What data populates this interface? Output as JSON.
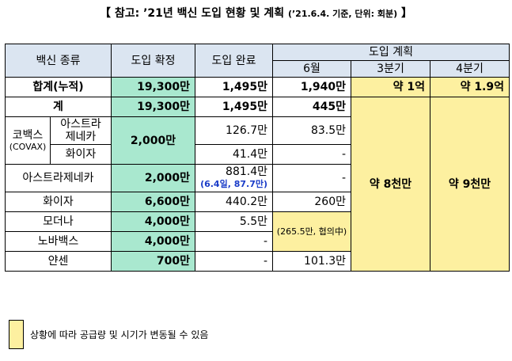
{
  "title": {
    "main": "【 참고: ’21년 백신 도입 현황 및 계획 ",
    "sub": "(’21.6.4. 기준, 단위: 회분)",
    "end": " 】"
  },
  "headers": {
    "type": "백신 종류",
    "confirmed": "도입 확정",
    "completed": "도입 완료",
    "plan": "도입 계획",
    "june": "6월",
    "q3": "3분기",
    "q4": "4분기"
  },
  "rows": {
    "cumulative": {
      "label": "합계(누적)",
      "confirmed": "19,300만",
      "completed": "1,495만",
      "june": "1,940만",
      "q3": "약 1억",
      "q4": "약 1.9억"
    },
    "total": {
      "label": "계",
      "confirmed": "19,300만",
      "completed": "1,495만",
      "june": "445만"
    },
    "covax": {
      "label_line1": "코백스",
      "label_line2": "(COVAX)",
      "confirmed": "2,000만",
      "az": {
        "label_line1": "아스트라",
        "label_line2": "제네카",
        "completed": "126.7만",
        "june": "83.5만"
      },
      "pfizer": {
        "label": "화이자",
        "completed": "41.4만",
        "june": "-"
      }
    },
    "astrazeneca": {
      "label": "아스트라제네카",
      "confirmed": "2,000만",
      "completed": "881.4만",
      "completed_note": "(6.4일, 87.7만)",
      "june": "-"
    },
    "pfizer": {
      "label": "화이자",
      "confirmed": "6,600만",
      "completed": "440.2만",
      "june": "260만"
    },
    "moderna": {
      "label": "모더나",
      "confirmed": "4,000만",
      "completed": "5.5만"
    },
    "novavax": {
      "label": "노바백스",
      "confirmed": "4,000만",
      "completed": "-"
    },
    "moderna_novavax_june": "(265.5만, 협의中)",
    "janssen": {
      "label": "얀센",
      "confirmed": "700만",
      "completed": "-",
      "june": "101.3만"
    },
    "q3_plan": "약 8천만",
    "q4_plan": "약 9천만"
  },
  "legend": {
    "text": "상황에 따라 공급량 및 시기가 변동될 수 있음",
    "color": "#fdf0a0"
  },
  "colors": {
    "header": "#dbe5f1",
    "confirmed": "#a9e8cf",
    "planned": "#fdf0a0"
  }
}
